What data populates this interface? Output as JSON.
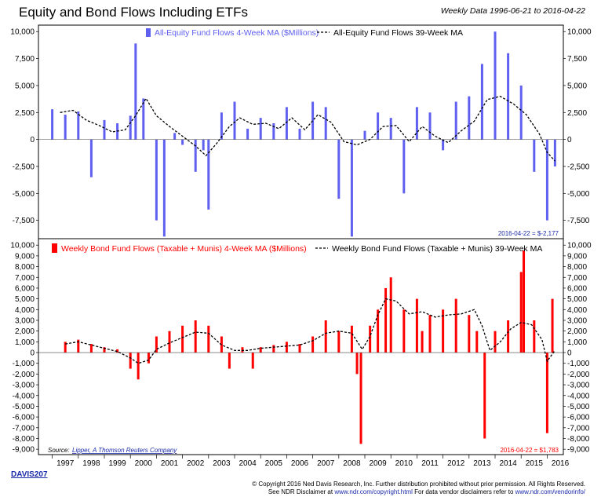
{
  "title": "Equity and Bond Flows Including ETFs",
  "date_range_label": "Weekly Data 1996-06-21 to 2016-04-22",
  "report_id": "DAVIS207",
  "footer": {
    "line1": "© Copyright 2016 Ned Davis Research, Inc. Further distribution prohibited without prior permission. All Rights Reserved.",
    "line2_a": "See NDR Disclaimer at ",
    "line2_link1": "www.ndr.com/copyright.html",
    "line2_b": "  For data vendor disclaimers refer to ",
    "line2_link2": "www.ndr.com/vendorinfo/"
  },
  "colors": {
    "equity": "#6060f0",
    "bond": "#ff0000",
    "ma": "#000000",
    "bg": "#ffffff",
    "link": "#1a2aa8"
  },
  "chart_data": [
    {
      "type": "bar",
      "title": "Equity and Bond Flows Including ETFs",
      "legend_placement": "top",
      "ylim": [
        -9200,
        10600
      ],
      "yticks": [
        -7500,
        -5000,
        -2500,
        0,
        2500,
        5000,
        7500,
        10000
      ],
      "ytick_labels": [
        "-7,500",
        "-5,000",
        "-2,500",
        "0",
        "2,500",
        "5,000",
        "7,500",
        "10,000"
      ],
      "grid": false,
      "end_label": "2016-04-22 = $-2,177",
      "series": [
        {
          "name": "All-Equity Fund Flows 4-Week MA ($Millions)",
          "kind": "bar",
          "x": [
            1997.0,
            1997.5,
            1998.0,
            1998.5,
            1999.0,
            1999.5,
            2000.0,
            2000.2,
            2000.5,
            2001.0,
            2001.3,
            2001.7,
            2002.0,
            2002.5,
            2002.8,
            2003.0,
            2003.5,
            2004.0,
            2004.5,
            2005.0,
            2005.5,
            2006.0,
            2006.5,
            2007.0,
            2007.5,
            2008.0,
            2008.5,
            2009.0,
            2009.5,
            2010.0,
            2010.5,
            2011.0,
            2011.5,
            2012.0,
            2012.5,
            2013.0,
            2013.5,
            2014.0,
            2014.5,
            2015.0,
            2015.5,
            2016.0,
            2016.3
          ],
          "y": [
            2800,
            2300,
            2600,
            -3500,
            1800,
            1500,
            2200,
            8900,
            3800,
            -7500,
            -9000,
            600,
            -500,
            -3000,
            -1000,
            -6500,
            2500,
            3500,
            1000,
            2000,
            1500,
            3000,
            1000,
            3500,
            3000,
            -5500,
            -9000,
            800,
            2500,
            2000,
            -5000,
            3000,
            2500,
            -1000,
            3500,
            4000,
            7000,
            10000,
            8000,
            5000,
            -3000,
            -7500,
            -2500
          ]
        },
        {
          "name": "All-Equity Fund Flows 39-Week MA",
          "kind": "line",
          "x": [
            1997.3,
            1997.8,
            1998.3,
            1998.8,
            1999.3,
            1999.8,
            2000.2,
            2000.6,
            2001.0,
            2001.5,
            2002.0,
            2002.5,
            2002.9,
            2003.3,
            2003.8,
            2004.2,
            2004.7,
            2005.2,
            2005.7,
            2006.2,
            2006.7,
            2007.2,
            2007.7,
            2008.2,
            2008.7,
            2009.2,
            2009.7,
            2010.2,
            2010.7,
            2011.2,
            2011.7,
            2012.2,
            2012.7,
            2013.2,
            2013.7,
            2014.2,
            2014.7,
            2015.2,
            2015.7,
            2016.0,
            2016.3
          ],
          "y": [
            2500,
            2700,
            1800,
            1300,
            700,
            900,
            2200,
            3800,
            2200,
            1200,
            300,
            -600,
            -1500,
            -400,
            1200,
            2000,
            1400,
            1500,
            1000,
            2000,
            900,
            2300,
            1600,
            -200,
            -500,
            0,
            1200,
            1300,
            -200,
            1200,
            300,
            -300,
            800,
            1700,
            3700,
            4000,
            3300,
            2300,
            500,
            -1200,
            -2000
          ]
        }
      ]
    },
    {
      "type": "bar",
      "legend_placement": "top",
      "ylim": [
        -9500,
        10600
      ],
      "yticks": [
        -9000,
        -8000,
        -7000,
        -6000,
        -5000,
        -4000,
        -3000,
        -2000,
        -1000,
        0,
        1000,
        2000,
        3000,
        4000,
        5000,
        6000,
        7000,
        8000,
        9000,
        10000
      ],
      "ytick_labels": [
        "-9,000",
        "-8,000",
        "-7,000",
        "-6,000",
        "-5,000",
        "-4,000",
        "-3,000",
        "-2,000",
        "-1,000",
        "0",
        "1,000",
        "2,000",
        "3,000",
        "4,000",
        "5,000",
        "6,000",
        "7,000",
        "8,000",
        "9,000",
        "10,000"
      ],
      "xticks": [
        1997,
        1998,
        1999,
        2000,
        2001,
        2002,
        2003,
        2004,
        2005,
        2006,
        2007,
        2008,
        2009,
        2010,
        2011,
        2012,
        2013,
        2014,
        2015,
        2016
      ],
      "xtick_labels": [
        "1997",
        "1998",
        "1999",
        "2000",
        "2001",
        "2002",
        "2003",
        "2004",
        "2005",
        "2006",
        "2007",
        "2008",
        "2009",
        "2010",
        "2011",
        "2012",
        "2013",
        "2014",
        "2015",
        "2016"
      ],
      "xlim": [
        1996.47,
        2016.62
      ],
      "grid": false,
      "end_label": "2016-04-22 = $1,783",
      "source_label": "Source:",
      "source_name": "Lipper, A Thomson Reuters Company",
      "series": [
        {
          "name": "Weekly Bond Fund Flows (Taxable + Munis) 4-Week MA ($Millions)",
          "kind": "bar",
          "x": [
            1997.5,
            1998.0,
            1998.5,
            1999.0,
            1999.5,
            2000.0,
            2000.3,
            2000.7,
            2001.0,
            2001.5,
            2002.0,
            2002.5,
            2003.0,
            2003.5,
            2003.8,
            2004.3,
            2004.7,
            2005.0,
            2005.5,
            2006.0,
            2006.5,
            2007.0,
            2007.5,
            2008.0,
            2008.5,
            2008.7,
            2008.85,
            2009.2,
            2009.5,
            2009.8,
            2010.0,
            2010.5,
            2011.0,
            2011.2,
            2011.5,
            2012.0,
            2012.5,
            2013.0,
            2013.3,
            2013.6,
            2014.0,
            2014.5,
            2015.0,
            2015.1,
            2015.5,
            2016.0,
            2016.2
          ],
          "y": [
            1000,
            1200,
            800,
            500,
            300,
            -1500,
            -2500,
            -1000,
            1500,
            2000,
            2500,
            3000,
            2500,
            1500,
            -1500,
            500,
            -1500,
            500,
            700,
            1000,
            800,
            1500,
            3000,
            2000,
            2500,
            -2000,
            -8500,
            2500,
            4000,
            6000,
            7000,
            4000,
            5000,
            2000,
            3500,
            4000,
            5000,
            3500,
            2000,
            -8000,
            2000,
            3000,
            7500,
            9500,
            3000,
            -7500,
            5000
          ]
        },
        {
          "name": "Weekly Bond Fund Flows (Taxable + Munis) 39-Week MA",
          "kind": "line",
          "x": [
            1997.5,
            1998.0,
            1998.5,
            1999.0,
            1999.5,
            2000.0,
            2000.3,
            2000.7,
            2001.0,
            2001.5,
            2002.0,
            2002.5,
            2003.0,
            2003.5,
            2004.0,
            2004.5,
            2005.0,
            2005.5,
            2006.0,
            2006.5,
            2007.0,
            2007.5,
            2008.0,
            2008.5,
            2008.9,
            2009.2,
            2009.5,
            2009.8,
            2010.2,
            2010.7,
            2011.2,
            2011.7,
            2012.2,
            2012.7,
            2013.2,
            2013.5,
            2013.8,
            2014.2,
            2014.6,
            2015.0,
            2015.4,
            2015.8,
            2016.0,
            2016.3
          ],
          "y": [
            800,
            1000,
            700,
            400,
            100,
            -500,
            -1000,
            -700,
            300,
            900,
            1400,
            1900,
            1800,
            700,
            200,
            200,
            400,
            500,
            600,
            700,
            1100,
            1800,
            2000,
            1800,
            300,
            1500,
            3500,
            5000,
            4800,
            3600,
            3800,
            3300,
            3500,
            3600,
            4000,
            2500,
            200,
            1000,
            2200,
            2800,
            2600,
            1200,
            -800,
            200
          ]
        }
      ]
    }
  ]
}
